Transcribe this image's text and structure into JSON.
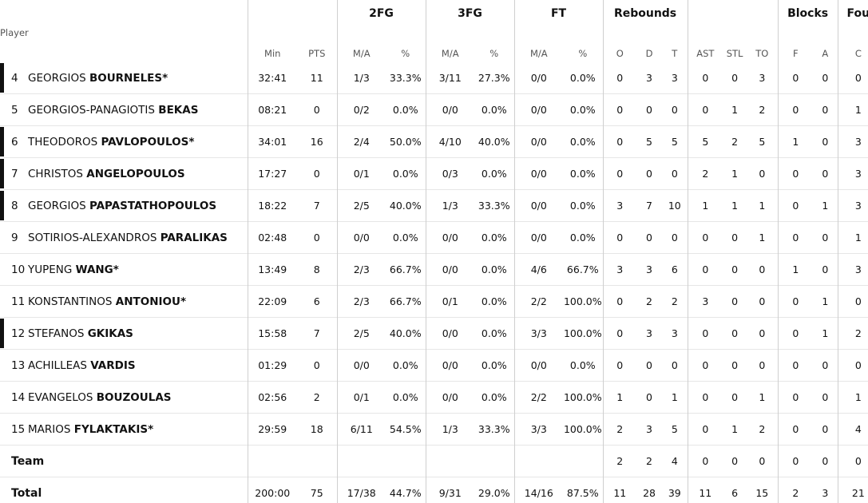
{
  "header": {
    "groups": [
      "2FG",
      "3FG",
      "FT",
      "Rebounds",
      "Blocks",
      "Fou"
    ],
    "player_label": "Player",
    "cols": [
      "Min",
      "PTS",
      "M/A",
      "%",
      "M/A",
      "%",
      "M/A",
      "%",
      "O",
      "D",
      "T",
      "AST",
      "STL",
      "TO",
      "F",
      "A",
      "C"
    ]
  },
  "players": [
    {
      "num": "4",
      "first": "GEORGIOS",
      "last": "BOURNELES*",
      "starter": true,
      "stats": [
        "32:41",
        "11",
        "1/3",
        "33.3%",
        "3/11",
        "27.3%",
        "0/0",
        "0.0%",
        "0",
        "3",
        "3",
        "0",
        "0",
        "3",
        "0",
        "0",
        "0"
      ]
    },
    {
      "num": "5",
      "first": "GEORGIOS-PANAGIOTIS",
      "last": "BEKAS",
      "starter": false,
      "stats": [
        "08:21",
        "0",
        "0/2",
        "0.0%",
        "0/0",
        "0.0%",
        "0/0",
        "0.0%",
        "0",
        "0",
        "0",
        "0",
        "1",
        "2",
        "0",
        "0",
        "1"
      ]
    },
    {
      "num": "6",
      "first": "THEODOROS",
      "last": "PAVLOPOULOS*",
      "starter": true,
      "stats": [
        "34:01",
        "16",
        "2/4",
        "50.0%",
        "4/10",
        "40.0%",
        "0/0",
        "0.0%",
        "0",
        "5",
        "5",
        "5",
        "2",
        "5",
        "1",
        "0",
        "3"
      ]
    },
    {
      "num": "7",
      "first": "CHRISTOS",
      "last": "ANGELOPOULOS",
      "starter": true,
      "stats": [
        "17:27",
        "0",
        "0/1",
        "0.0%",
        "0/3",
        "0.0%",
        "0/0",
        "0.0%",
        "0",
        "0",
        "0",
        "2",
        "1",
        "0",
        "0",
        "0",
        "3"
      ]
    },
    {
      "num": "8",
      "first": "GEORGIOS",
      "last": "PAPASTATHOPOULOS",
      "starter": true,
      "stats": [
        "18:22",
        "7",
        "2/5",
        "40.0%",
        "1/3",
        "33.3%",
        "0/0",
        "0.0%",
        "3",
        "7",
        "10",
        "1",
        "1",
        "1",
        "0",
        "1",
        "3"
      ]
    },
    {
      "num": "9",
      "first": "SOTIRIOS-ALEXANDROS",
      "last": "PARALIKAS",
      "starter": false,
      "stats": [
        "02:48",
        "0",
        "0/0",
        "0.0%",
        "0/0",
        "0.0%",
        "0/0",
        "0.0%",
        "0",
        "0",
        "0",
        "0",
        "0",
        "1",
        "0",
        "0",
        "1"
      ]
    },
    {
      "num": "10",
      "first": "YUPENG",
      "last": "WANG*",
      "starter": false,
      "stats": [
        "13:49",
        "8",
        "2/3",
        "66.7%",
        "0/0",
        "0.0%",
        "4/6",
        "66.7%",
        "3",
        "3",
        "6",
        "0",
        "0",
        "0",
        "1",
        "0",
        "3"
      ]
    },
    {
      "num": "11",
      "first": "KONSTANTINOS",
      "last": "ANTONIOU*",
      "starter": false,
      "stats": [
        "22:09",
        "6",
        "2/3",
        "66.7%",
        "0/1",
        "0.0%",
        "2/2",
        "100.0%",
        "0",
        "2",
        "2",
        "3",
        "0",
        "0",
        "0",
        "1",
        "0"
      ]
    },
    {
      "num": "12",
      "first": "STEFANOS",
      "last": "GKIKAS",
      "starter": true,
      "stats": [
        "15:58",
        "7",
        "2/5",
        "40.0%",
        "0/0",
        "0.0%",
        "3/3",
        "100.0%",
        "0",
        "3",
        "3",
        "0",
        "0",
        "0",
        "0",
        "1",
        "2"
      ]
    },
    {
      "num": "13",
      "first": "ACHILLEAS",
      "last": "VARDIS",
      "starter": false,
      "stats": [
        "01:29",
        "0",
        "0/0",
        "0.0%",
        "0/0",
        "0.0%",
        "0/0",
        "0.0%",
        "0",
        "0",
        "0",
        "0",
        "0",
        "0",
        "0",
        "0",
        "0"
      ]
    },
    {
      "num": "14",
      "first": "EVANGELOS",
      "last": "BOUZOULAS",
      "starter": false,
      "stats": [
        "02:56",
        "2",
        "0/1",
        "0.0%",
        "0/0",
        "0.0%",
        "2/2",
        "100.0%",
        "1",
        "0",
        "1",
        "0",
        "0",
        "1",
        "0",
        "0",
        "1"
      ]
    },
    {
      "num": "15",
      "first": "MARIOS",
      "last": "FYLAKTAKIS*",
      "starter": false,
      "stats": [
        "29:59",
        "18",
        "6/11",
        "54.5%",
        "1/3",
        "33.3%",
        "3/3",
        "100.0%",
        "2",
        "3",
        "5",
        "0",
        "1",
        "2",
        "0",
        "0",
        "4"
      ]
    }
  ],
  "team": {
    "label": "Team",
    "stats": [
      "",
      "",
      "",
      "",
      "",
      "",
      "",
      "",
      "2",
      "2",
      "4",
      "0",
      "0",
      "0",
      "0",
      "0",
      "0"
    ]
  },
  "total": {
    "label": "Total",
    "stats": [
      "200:00",
      "75",
      "17/38",
      "44.7%",
      "9/31",
      "29.0%",
      "14/16",
      "87.5%",
      "11",
      "28",
      "39",
      "11",
      "6",
      "15",
      "2",
      "3",
      "21"
    ]
  },
  "colors": {
    "row_divider": "#e6e6e6",
    "column_divider": "#cfcfcf",
    "starter_bar": "#111111",
    "header_text": "#555555"
  }
}
